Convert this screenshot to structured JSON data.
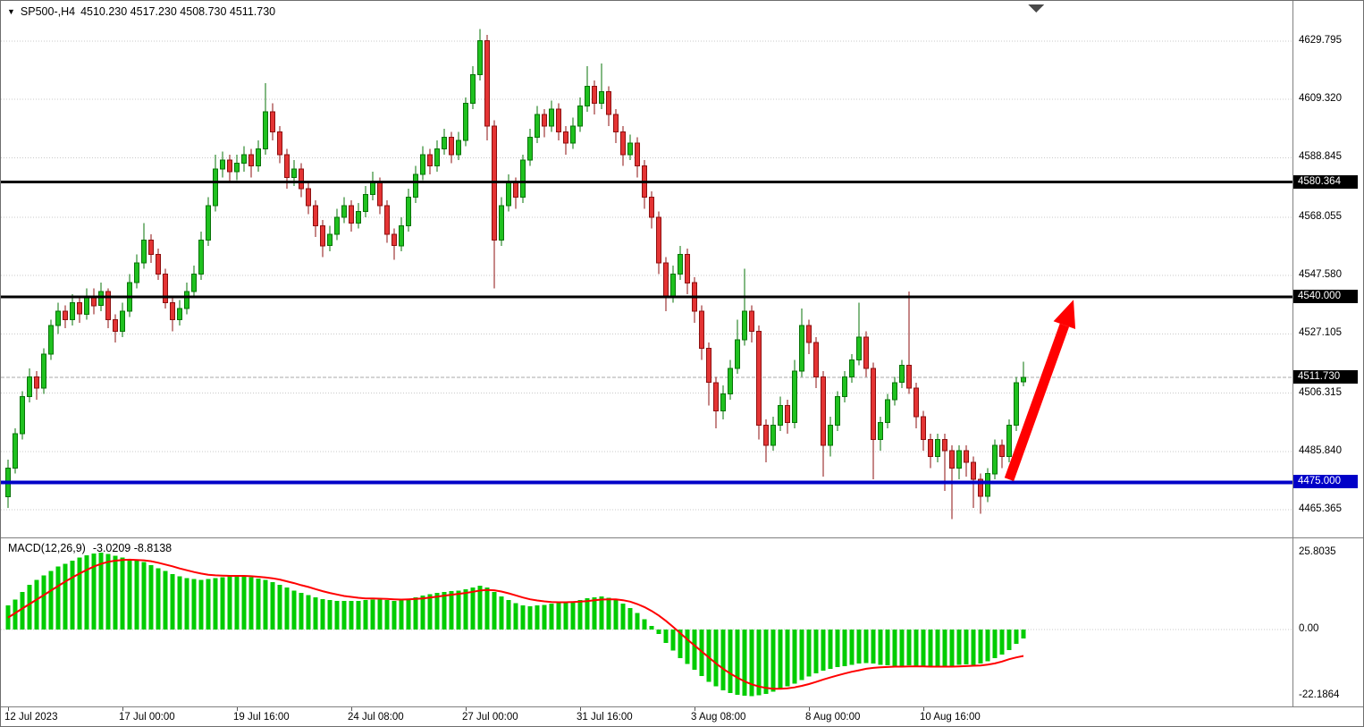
{
  "window": {
    "app": "chart-terminal"
  },
  "price_axis": {
    "badges": [
      {
        "text": "4580.364",
        "price": 4580.364,
        "bg": "#000000"
      },
      {
        "text": "4540.000",
        "price": 4540.0,
        "bg": "#000000"
      },
      {
        "text": "4511.730",
        "price": 4511.73,
        "bg": "#000000"
      },
      {
        "text": "4475.000",
        "price": 4475.0,
        "bg": "#0000C8"
      }
    ]
  },
  "macd_axis": {
    "labels": [
      {
        "text": "25.8035",
        "value": 25.8035
      },
      {
        "text": "0.00",
        "value": 0
      },
      {
        "text": "-22.1864",
        "value": -22.1864
      }
    ]
  },
  "chart_data": [
    {
      "type": "candlestick",
      "title": "SP500-,H4",
      "ohlc_text": "4510.230 4517.230 4508.730 4511.730",
      "ylim": [
        4459,
        4636
      ],
      "y_ticks": [
        4629.795,
        4609.32,
        4588.845,
        4568.055,
        4547.58,
        4527.105,
        4506.315,
        4485.84,
        4465.365
      ],
      "current_price": 4511.73,
      "grid": "horizontal-dotted",
      "candle_colors": {
        "up_fill": "#1fc11f",
        "up_border": "#077307",
        "down_fill": "#e43434",
        "down_border": "#8d0f0f"
      },
      "levels": [
        {
          "price": 4580.364,
          "color": "#000000",
          "width": 3
        },
        {
          "price": 4540.0,
          "color": "#000000",
          "width": 3
        },
        {
          "price": 4475.0,
          "color": "#0000C8",
          "width": 4
        }
      ],
      "annotations": {
        "arrow": {
          "from_bar": 140,
          "from_price": 4476,
          "to_bar": 149,
          "to_price": 4539,
          "color": "#FF0000"
        }
      },
      "x_labels": [
        {
          "text": "12 Jul 2023",
          "bar": 0
        },
        {
          "text": "17 Jul 00:00",
          "bar": 16
        },
        {
          "text": "19 Jul 16:00",
          "bar": 32
        },
        {
          "text": "24 Jul 08:00",
          "bar": 48
        },
        {
          "text": "27 Jul 00:00",
          "bar": 64
        },
        {
          "text": "31 Jul 16:00",
          "bar": 80
        },
        {
          "text": "3 Aug 08:00",
          "bar": 96
        },
        {
          "text": "8 Aug 00:00",
          "bar": 112
        },
        {
          "text": "10 Aug 16:00",
          "bar": 128
        }
      ],
      "candles": [
        [
          4470,
          4483,
          4466,
          4480
        ],
        [
          4480,
          4494,
          4478,
          4492
        ],
        [
          4492,
          4507,
          4490,
          4505
        ],
        [
          4505,
          4515,
          4503,
          4512
        ],
        [
          4512,
          4514,
          4504,
          4508
        ],
        [
          4508,
          4522,
          4506,
          4520
        ],
        [
          4520,
          4532,
          4518,
          4530
        ],
        [
          4530,
          4538,
          4527,
          4535
        ],
        [
          4535,
          4537,
          4529,
          4532
        ],
        [
          4532,
          4541,
          4530,
          4538
        ],
        [
          4538,
          4540,
          4531,
          4534
        ],
        [
          4534,
          4543,
          4532,
          4540
        ],
        [
          4540,
          4543,
          4534,
          4537
        ],
        [
          4537,
          4545,
          4535,
          4542
        ],
        [
          4542,
          4543,
          4529,
          4532
        ],
        [
          4532,
          4534,
          4524,
          4528
        ],
        [
          4528,
          4538,
          4526,
          4535
        ],
        [
          4535,
          4548,
          4533,
          4545
        ],
        [
          4545,
          4555,
          4543,
          4552
        ],
        [
          4552,
          4566,
          4550,
          4560
        ],
        [
          4560,
          4562,
          4552,
          4555
        ],
        [
          4555,
          4557,
          4546,
          4548
        ],
        [
          4548,
          4550,
          4536,
          4538
        ],
        [
          4538,
          4540,
          4528,
          4532
        ],
        [
          4532,
          4539,
          4530,
          4536
        ],
        [
          4536,
          4545,
          4534,
          4542
        ],
        [
          4542,
          4551,
          4540,
          4548
        ],
        [
          4548,
          4563,
          4546,
          4560
        ],
        [
          4560,
          4575,
          4558,
          4572
        ],
        [
          4572,
          4590,
          4570,
          4585
        ],
        [
          4585,
          4591,
          4582,
          4588
        ],
        [
          4588,
          4590,
          4580,
          4584
        ],
        [
          4584,
          4590,
          4581,
          4587
        ],
        [
          4587,
          4593,
          4584,
          4590
        ],
        [
          4590,
          4592,
          4582,
          4586
        ],
        [
          4586,
          4595,
          4584,
          4592
        ],
        [
          4592,
          4615,
          4590,
          4605
        ],
        [
          4605,
          4608,
          4595,
          4598
        ],
        [
          4598,
          4600,
          4587,
          4590
        ],
        [
          4590,
          4592,
          4578,
          4582
        ],
        [
          4582,
          4588,
          4579,
          4585
        ],
        [
          4585,
          4587,
          4575,
          4578
        ],
        [
          4578,
          4580,
          4569,
          4572
        ],
        [
          4572,
          4574,
          4561,
          4565
        ],
        [
          4565,
          4567,
          4554,
          4558
        ],
        [
          4558,
          4565,
          4556,
          4562
        ],
        [
          4562,
          4571,
          4560,
          4568
        ],
        [
          4568,
          4575,
          4566,
          4572
        ],
        [
          4572,
          4574,
          4563,
          4566
        ],
        [
          4566,
          4573,
          4564,
          4570
        ],
        [
          4570,
          4579,
          4568,
          4576
        ],
        [
          4576,
          4584,
          4574,
          4580
        ],
        [
          4580,
          4582,
          4569,
          4572
        ],
        [
          4572,
          4574,
          4559,
          4562
        ],
        [
          4562,
          4564,
          4553,
          4558
        ],
        [
          4558,
          4568,
          4556,
          4565
        ],
        [
          4565,
          4578,
          4563,
          4575
        ],
        [
          4575,
          4586,
          4573,
          4583
        ],
        [
          4583,
          4593,
          4581,
          4590
        ],
        [
          4590,
          4592,
          4583,
          4586
        ],
        [
          4586,
          4595,
          4584,
          4592
        ],
        [
          4592,
          4599,
          4590,
          4596
        ],
        [
          4596,
          4598,
          4587,
          4590
        ],
        [
          4590,
          4598,
          4588,
          4595
        ],
        [
          4595,
          4610,
          4593,
          4608
        ],
        [
          4608,
          4621,
          4606,
          4618
        ],
        [
          4618,
          4634,
          4616,
          4630
        ],
        [
          4630,
          4632,
          4595,
          4600
        ],
        [
          4600,
          4602,
          4543,
          4560
        ],
        [
          4560,
          4575,
          4558,
          4572
        ],
        [
          4572,
          4583,
          4570,
          4580
        ],
        [
          4580,
          4582,
          4571,
          4575
        ],
        [
          4575,
          4590,
          4573,
          4588
        ],
        [
          4588,
          4599,
          4586,
          4596
        ],
        [
          4596,
          4607,
          4594,
          4604
        ],
        [
          4604,
          4606,
          4596,
          4600
        ],
        [
          4600,
          4609,
          4598,
          4606
        ],
        [
          4606,
          4608,
          4595,
          4598
        ],
        [
          4598,
          4600,
          4590,
          4594
        ],
        [
          4594,
          4603,
          4592,
          4600
        ],
        [
          4600,
          4610,
          4598,
          4607
        ],
        [
          4607,
          4621,
          4605,
          4614
        ],
        [
          4614,
          4616,
          4604,
          4608
        ],
        [
          4608,
          4622,
          4606,
          4612
        ],
        [
          4612,
          4614,
          4600,
          4604
        ],
        [
          4604,
          4606,
          4594,
          4598
        ],
        [
          4598,
          4600,
          4586,
          4590
        ],
        [
          4590,
          4597,
          4588,
          4594
        ],
        [
          4594,
          4596,
          4582,
          4586
        ],
        [
          4586,
          4588,
          4571,
          4575
        ],
        [
          4575,
          4577,
          4564,
          4568
        ],
        [
          4568,
          4570,
          4548,
          4552
        ],
        [
          4552,
          4554,
          4535,
          4540
        ],
        [
          4540,
          4551,
          4538,
          4548
        ],
        [
          4548,
          4558,
          4546,
          4555
        ],
        [
          4555,
          4557,
          4541,
          4545
        ],
        [
          4545,
          4547,
          4531,
          4535
        ],
        [
          4535,
          4537,
          4518,
          4522
        ],
        [
          4522,
          4524,
          4502,
          4510
        ],
        [
          4510,
          4512,
          4494,
          4500
        ],
        [
          4500,
          4509,
          4497,
          4506
        ],
        [
          4506,
          4518,
          4504,
          4515
        ],
        [
          4515,
          4532,
          4513,
          4525
        ],
        [
          4525,
          4550,
          4523,
          4535
        ],
        [
          4535,
          4537,
          4524,
          4528
        ],
        [
          4528,
          4530,
          4490,
          4495
        ],
        [
          4495,
          4497,
          4482,
          4488
        ],
        [
          4488,
          4498,
          4486,
          4495
        ],
        [
          4495,
          4505,
          4493,
          4502
        ],
        [
          4502,
          4504,
          4492,
          4496
        ],
        [
          4496,
          4518,
          4494,
          4514
        ],
        [
          4514,
          4536,
          4512,
          4530
        ],
        [
          4530,
          4532,
          4520,
          4524
        ],
        [
          4524,
          4526,
          4508,
          4512
        ],
        [
          4512,
          4514,
          4477,
          4488
        ],
        [
          4488,
          4498,
          4484,
          4495
        ],
        [
          4495,
          4507,
          4493,
          4505
        ],
        [
          4505,
          4514,
          4503,
          4512
        ],
        [
          4512,
          4520,
          4510,
          4518
        ],
        [
          4518,
          4538,
          4516,
          4526
        ],
        [
          4526,
          4528,
          4512,
          4515
        ],
        [
          4515,
          4517,
          4476,
          4490
        ],
        [
          4490,
          4498,
          4486,
          4496
        ],
        [
          4496,
          4506,
          4494,
          4504
        ],
        [
          4504,
          4512,
          4502,
          4510
        ],
        [
          4510,
          4518,
          4508,
          4516
        ],
        [
          4516,
          4542,
          4506,
          4508
        ],
        [
          4508,
          4510,
          4494,
          4498
        ],
        [
          4498,
          4500,
          4486,
          4490
        ],
        [
          4490,
          4492,
          4480,
          4484
        ],
        [
          4484,
          4492,
          4482,
          4490
        ],
        [
          4490,
          4492,
          4472,
          4486
        ],
        [
          4486,
          4488,
          4462,
          4480
        ],
        [
          4480,
          4488,
          4476,
          4486
        ],
        [
          4486,
          4488,
          4477,
          4482
        ],
        [
          4482,
          4484,
          4466,
          4476
        ],
        [
          4476,
          4478,
          4464,
          4470
        ],
        [
          4470,
          4480,
          4468,
          4478
        ],
        [
          4478,
          4490,
          4476,
          4488
        ],
        [
          4488,
          4490,
          4480,
          4484
        ],
        [
          4484,
          4497,
          4482,
          4495
        ],
        [
          4495,
          4512,
          4493,
          4510
        ],
        [
          4510.23,
          4517.23,
          4508.73,
          4511.73
        ]
      ]
    },
    {
      "type": "macd",
      "label": "MACD(12,26,9)",
      "values_text": "-3.0209 -8.8138",
      "main_value": -3.0209,
      "signal_value": -8.8138,
      "ylim": [
        -22.1864,
        25.8035
      ],
      "y_ticks": [
        25.8035,
        0,
        -22.1864
      ],
      "colors": {
        "histogram": "#00CC00",
        "signal": "#FF0000"
      },
      "histogram": [
        8,
        10,
        12.5,
        15,
        16.5,
        18,
        19.5,
        21,
        22,
        23,
        24,
        24.8,
        25.3,
        25.6,
        25.2,
        24.6,
        24,
        23.5,
        23,
        22.5,
        21.5,
        20.5,
        19.5,
        18.5,
        17.8,
        17.2,
        16.8,
        16.6,
        16.8,
        17.2,
        17.5,
        17.8,
        17.9,
        17.8,
        17.5,
        17,
        16.5,
        15.8,
        15,
        14,
        13,
        12.2,
        11.5,
        10.8,
        10.2,
        9.8,
        9.6,
        9.5,
        9.5,
        9.6,
        9.8,
        10,
        10,
        9.8,
        9.6,
        9.8,
        10.2,
        10.8,
        11.4,
        11.8,
        12.2,
        12.6,
        12.8,
        13,
        13.4,
        14,
        14.6,
        14,
        12.5,
        11,
        9.8,
        8.8,
        8,
        7.8,
        8,
        8.2,
        8.6,
        8.8,
        9,
        9.4,
        9.8,
        10.4,
        10.8,
        11,
        10.6,
        9.8,
        8.6,
        7.2,
        5.5,
        3.5,
        1.2,
        -1.5,
        -4.5,
        -7,
        -9.5,
        -11.5,
        -13.5,
        -15.5,
        -17.5,
        -19,
        -20.3,
        -21.2,
        -21.8,
        -22.1,
        -22.2,
        -22,
        -21.5,
        -20.8,
        -20,
        -19,
        -18,
        -16.8,
        -15.6,
        -14.6,
        -13.8,
        -13.2,
        -12.6,
        -12.2,
        -11.8,
        -11.4,
        -11.2,
        -11.4,
        -11.8,
        -12,
        -12.2,
        -12.2,
        -12,
        -12.2,
        -12.4,
        -12.6,
        -12.6,
        -12.4,
        -12.2,
        -11.8,
        -11.6,
        -11.8,
        -11.4,
        -10.6,
        -9.6,
        -8.4,
        -6.8,
        -4.8,
        -3.02
      ],
      "signal": [
        4,
        5.5,
        7,
        8.5,
        10,
        11.5,
        13,
        14.5,
        16,
        17.4,
        18.7,
        19.9,
        21,
        21.9,
        22.6,
        23,
        23.2,
        23.3,
        23.2,
        23.1,
        22.8,
        22.3,
        21.7,
        21.1,
        20.4,
        19.8,
        19.2,
        18.7,
        18.3,
        18.1,
        18,
        17.9,
        17.9,
        17.9,
        17.8,
        17.6,
        17.4,
        17.1,
        16.7,
        16.1,
        15.5,
        14.8,
        14.2,
        13.5,
        12.8,
        12.2,
        11.7,
        11.2,
        10.9,
        10.6,
        10.4,
        10.4,
        10.3,
        10.2,
        10.1,
        10,
        10.1,
        10.2,
        10.4,
        10.7,
        11,
        11.3,
        11.6,
        11.9,
        12.2,
        12.6,
        13,
        13.2,
        13.1,
        12.7,
        12.1,
        11.4,
        10.7,
        10.1,
        9.7,
        9.4,
        9.2,
        9.1,
        9.1,
        9.2,
        9.3,
        9.5,
        9.8,
        10,
        10.1,
        10.1,
        9.8,
        9.3,
        8.5,
        7.5,
        6.2,
        4.7,
        2.9,
        0.9,
        -1.2,
        -3.3,
        -5.3,
        -7.3,
        -9.3,
        -11.3,
        -13.1,
        -14.7,
        -16.1,
        -17.3,
        -18.3,
        -19,
        -19.5,
        -19.8,
        -19.8,
        -19.6,
        -19.3,
        -18.8,
        -18.2,
        -17.5,
        -16.7,
        -16,
        -15.3,
        -14.7,
        -14.1,
        -13.6,
        -13.1,
        -12.8,
        -12.6,
        -12.5,
        -12.4,
        -12.4,
        -12.3,
        -12.3,
        -12.3,
        -12.4,
        -12.4,
        -12.4,
        -12.4,
        -12.3,
        -12.2,
        -12.1,
        -12,
        -11.7,
        -11.3,
        -10.7,
        -9.9,
        -9.3,
        -8.81
      ]
    }
  ]
}
